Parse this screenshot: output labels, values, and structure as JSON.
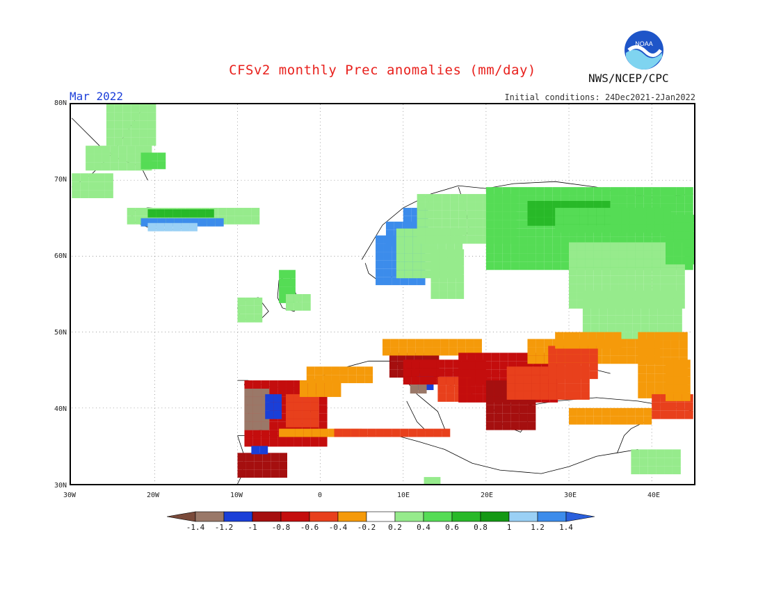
{
  "header": {
    "title": "CFSv2 monthly Prec anomalies (mm/day)",
    "month": "Mar 2022",
    "initial_conditions": "Initial conditions: 24Dec2021-2Jan2022",
    "agency": "NWS/NCEP/CPC",
    "logo_text": "NOAA"
  },
  "map": {
    "lat_labels": [
      "80N",
      "70N",
      "60N",
      "50N",
      "40N",
      "30N"
    ],
    "lon_labels": [
      "30W",
      "20W",
      "10W",
      "0",
      "10E",
      "20E",
      "30E",
      "40E"
    ],
    "extent": {
      "lon": [
        -30,
        45
      ],
      "lat": [
        30,
        80
      ]
    },
    "grid": "dotted",
    "anomaly_regions": [
      {
        "area": "Greenland coast",
        "class": "g1"
      },
      {
        "area": "Iceland",
        "class": "g2"
      },
      {
        "area": "Iceland south coast",
        "class": "b2"
      },
      {
        "area": "Norwegian coast",
        "class": "b2"
      },
      {
        "area": "Scandinavia inland",
        "class": "g1"
      },
      {
        "area": "Northwest Russia / Finland",
        "class": "g2"
      },
      {
        "area": "Ireland / Scotland",
        "class": "g1"
      },
      {
        "area": "Iberian Peninsula west",
        "class": "br"
      },
      {
        "area": "Iberian Peninsula",
        "class": "r2"
      },
      {
        "area": "Spain east",
        "class": "o"
      },
      {
        "area": "North Africa coast",
        "class": "o"
      },
      {
        "area": "Morocco",
        "class": "r2"
      },
      {
        "area": "Italy",
        "class": "r2"
      },
      {
        "area": "Balkans",
        "class": "r1"
      },
      {
        "area": "Greece",
        "class": "r2"
      },
      {
        "area": "Black Sea region",
        "class": "o"
      },
      {
        "area": "Turkey",
        "class": "o"
      },
      {
        "area": "Eastern Mediterranean coast",
        "class": "g1"
      }
    ]
  },
  "colorbar": {
    "labels": [
      "-1.4",
      "-1.2",
      "-1",
      "-0.8",
      "-0.6",
      "-0.4",
      "-0.2",
      "0.2",
      "0.4",
      "0.6",
      "0.8",
      "1",
      "1.2",
      "1.4"
    ],
    "colors": [
      "#7a4a3a",
      "#9a7868",
      "#1a3fd8",
      "#a50f0f",
      "#c40d0d",
      "#e8401c",
      "#f59a0a",
      "#ffffff",
      "#96eb8c",
      "#55dc55",
      "#28b928",
      "#149914",
      "#9ad0f5",
      "#3c8ceb",
      "#2a5fdc"
    ]
  },
  "palette": {
    "b1": "#1a3fd8",
    "br": "#9a7868",
    "r2": "#a50f0f",
    "r1": "#c40d0d",
    "or": "#e8401c",
    "o": "#f59a0a",
    "g1": "#96eb8c",
    "g2": "#55dc55",
    "g3": "#28b928",
    "g4": "#149914",
    "b2": "#3c8ceb",
    "lb": "#9ad0f5"
  }
}
